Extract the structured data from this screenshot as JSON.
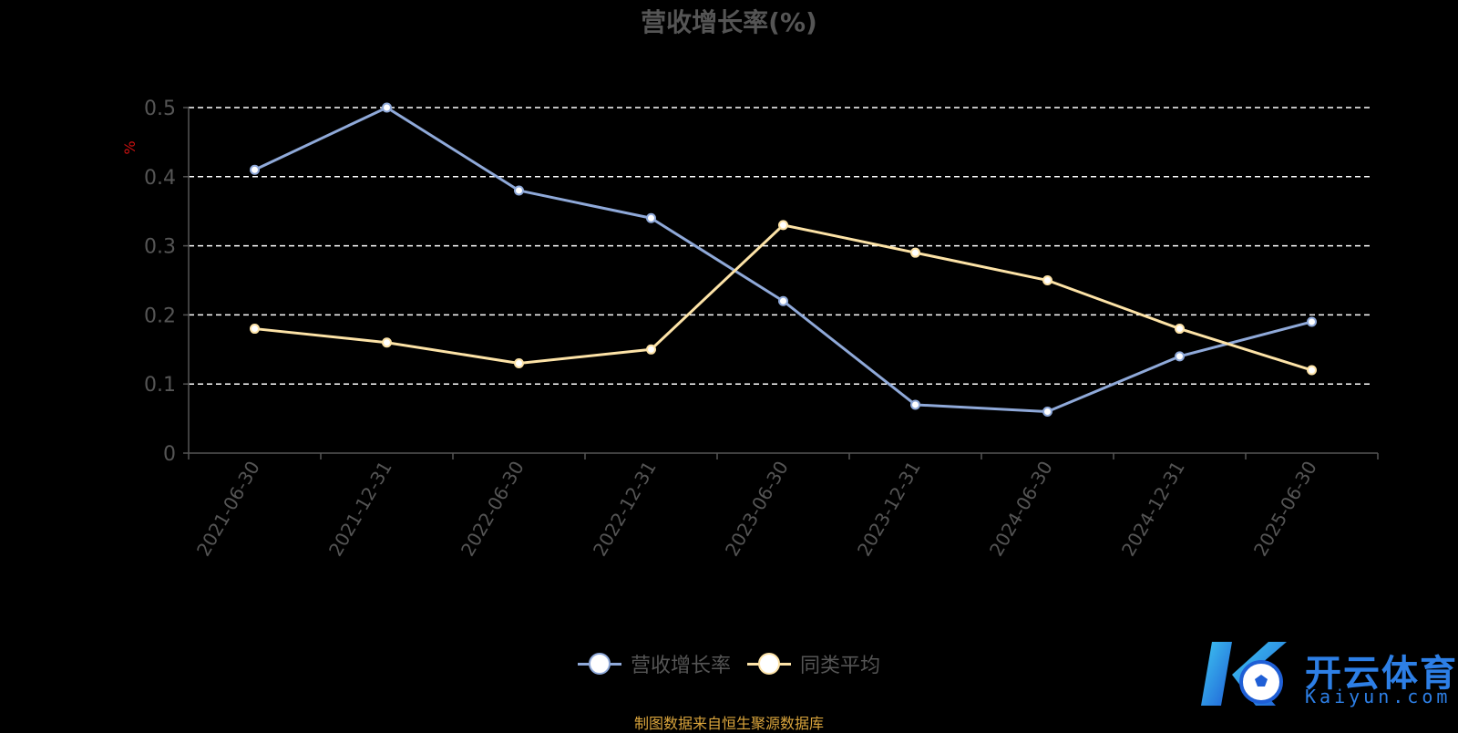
{
  "chart_data": {
    "type": "line",
    "title": "营收增长率(%)",
    "ylabel": "%",
    "xlabel": "",
    "ylim": [
      0,
      0.5
    ],
    "yticks": [
      "0",
      "0.1",
      "0.2",
      "0.3",
      "0.4",
      "0.5"
    ],
    "grid": true,
    "legend_position": "bottom",
    "categories": [
      "2021-06-30",
      "2021-12-31",
      "2022-06-30",
      "2022-12-31",
      "2023-06-30",
      "2023-12-31",
      "2024-06-30",
      "2024-12-31",
      "2025-06-30"
    ],
    "series": [
      {
        "name": "营收增长率",
        "color": "#8fa9d9",
        "values": [
          0.41,
          0.5,
          0.38,
          0.34,
          0.22,
          0.07,
          0.06,
          0.14,
          0.19
        ]
      },
      {
        "name": "同类平均",
        "color": "#fde3a7",
        "values": [
          0.18,
          0.16,
          0.13,
          0.15,
          0.33,
          0.29,
          0.25,
          0.18,
          0.12
        ]
      }
    ]
  },
  "source_note": "制图数据来自恒生聚源数据库",
  "watermark": {
    "brand": "开云体育",
    "sub": "Kaiyun.com"
  }
}
